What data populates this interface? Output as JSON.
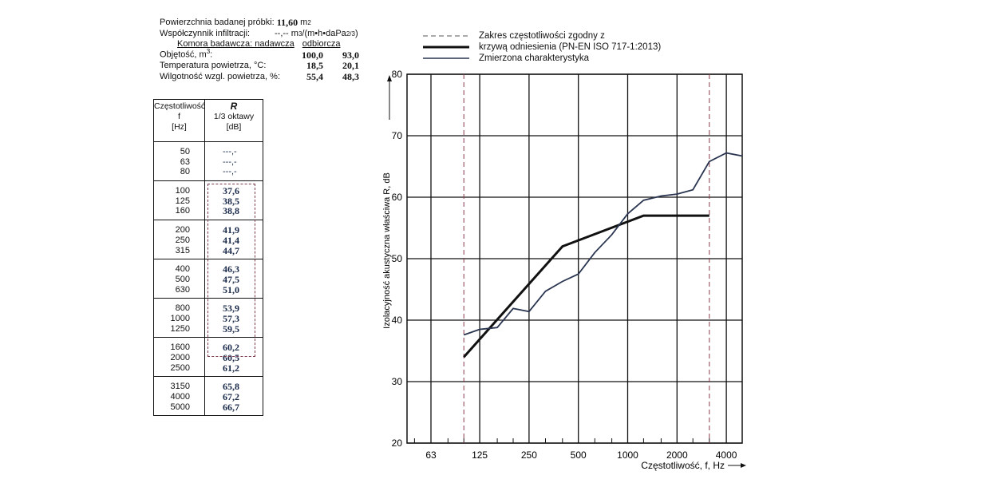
{
  "header": {
    "area_label": "Powierzchnia badanej próbki:",
    "area_value": "11,60",
    "area_unit": "m",
    "area_unit_sup": "2",
    "infil_label": "Współczynnik infiltracji:",
    "infil_value": "--,--",
    "infil_unit": "m",
    "infil_unit_sup": "3",
    "infil_unit_rest": "/(m•h•daPa",
    "infil_unit_rest_sup": "2/3",
    "infil_unit_close": ")",
    "chambers_label": "Komora badawcza: nadawcza",
    "chambers_label2": "odbiorcza",
    "volume_label": "Objętość, m",
    "volume_sup": "3",
    "volume_colon": ":",
    "volume_send": "100,0",
    "volume_recv": "93,0",
    "temp_label": "Temperatura powietrza, °C:",
    "temp_send": "18,5",
    "temp_recv": "20,1",
    "hum_label": "Wilgotność wzgl. powietrza, %:",
    "hum_send": "55,4",
    "hum_recv": "48,3"
  },
  "table": {
    "col1_line1": "Częstotliwość",
    "col1_line2": "f",
    "col1_line3": "[Hz]",
    "col2_line1": "R",
    "col2_line2": "1/3 oktawy",
    "col2_line3": "[dB]",
    "groups": [
      {
        "f": [
          "50",
          "63",
          "80"
        ],
        "r": [
          "---,-",
          "---,-",
          "---,-"
        ]
      },
      {
        "f": [
          "100",
          "125",
          "160"
        ],
        "r": [
          "37,6",
          "38,5",
          "38,8"
        ]
      },
      {
        "f": [
          "200",
          "250",
          "315"
        ],
        "r": [
          "41,9",
          "41,4",
          "44,7"
        ]
      },
      {
        "f": [
          "400",
          "500",
          "630"
        ],
        "r": [
          "46,3",
          "47,5",
          "51,0"
        ]
      },
      {
        "f": [
          "800",
          "1000",
          "1250"
        ],
        "r": [
          "53,9",
          "57,3",
          "59,5"
        ]
      },
      {
        "f": [
          "1600",
          "2000",
          "2500"
        ],
        "r": [
          "60,2",
          "60,5",
          "61,2"
        ]
      },
      {
        "f": [
          "3150",
          "4000",
          "5000"
        ],
        "r": [
          "65,8",
          "67,2",
          "66,7"
        ]
      }
    ]
  },
  "legend": {
    "dashed": "Zakres częstotliwości zgodny z",
    "ref_line1": "krzywą odniesienia (PN-EN ISO 717-1:2013)",
    "measured": "Zmierzona charakterystyka"
  },
  "chart_data": {
    "type": "line",
    "ylabel": "Izolacyjność akustyczna właściwa R, dB",
    "xlabel": "Częstotliwość, f, Hz",
    "x_scale": "log",
    "ylim": [
      20,
      80
    ],
    "y_ticks": [
      20,
      30,
      40,
      50,
      60,
      70,
      80
    ],
    "x_tick_labels": [
      "63",
      "125",
      "250",
      "500",
      "1000",
      "2000",
      "4000"
    ],
    "x_tick_values": [
      63,
      125,
      250,
      500,
      1000,
      2000,
      4000
    ],
    "grid": true,
    "dashed_verticals": [
      100,
      3150
    ],
    "series": [
      {
        "name": "Zmierzona charakterystyka",
        "x": [
          100,
          125,
          160,
          200,
          250,
          315,
          400,
          500,
          630,
          800,
          1000,
          1250,
          1600,
          2000,
          2500,
          3150,
          4000,
          5000
        ],
        "y": [
          37.6,
          38.5,
          38.8,
          41.9,
          41.4,
          44.7,
          46.3,
          47.5,
          51.0,
          53.9,
          57.3,
          59.5,
          60.2,
          60.5,
          61.2,
          65.8,
          67.2,
          66.7
        ]
      },
      {
        "name": "krzywą odniesienia (PN-EN ISO 717-1:2013)",
        "x": [
          100,
          400,
          1250,
          3150
        ],
        "y": [
          34,
          52,
          57,
          57
        ]
      }
    ],
    "colors": {
      "measured": "#2a3550",
      "reference": "#111111",
      "grid": "#111111",
      "dashed": "#8a3a4a"
    }
  }
}
